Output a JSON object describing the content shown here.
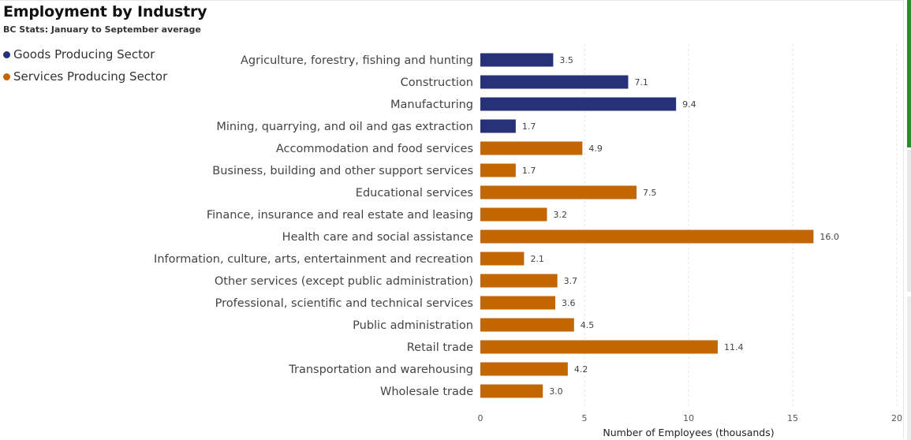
{
  "header": {
    "title": "Employment by Industry",
    "subtitle": "BC Stats: January to September average"
  },
  "legend": [
    {
      "label": "Goods Producing Sector",
      "color": "#27317a"
    },
    {
      "label": "Services Producing Sector",
      "color": "#c46600"
    }
  ],
  "chart_data": {
    "type": "bar",
    "orientation": "horizontal",
    "xlabel": "Number of Employees (thousands)",
    "xlim": [
      0,
      20
    ],
    "xticks": [
      0,
      5,
      10,
      15,
      20
    ],
    "grid": "vertical dashed",
    "legend_position": "top-left",
    "categories": [
      "Agriculture, forestry, fishing and hunting",
      "Construction",
      "Manufacturing",
      "Mining, quarrying, and oil and gas extraction",
      "Accommodation and food services",
      "Business, building and other support services",
      "Educational services",
      "Finance, insurance and real estate and leasing",
      "Health care and social assistance",
      "Information, culture, arts, entertainment and recreation",
      "Other services (except public administration)",
      "Professional, scientific and technical services",
      "Public administration",
      "Retail trade",
      "Transportation and warehousing",
      "Wholesale trade"
    ],
    "values": [
      3.5,
      7.1,
      9.4,
      1.7,
      4.9,
      1.7,
      7.5,
      3.2,
      16.0,
      2.1,
      3.7,
      3.6,
      4.5,
      11.4,
      4.2,
      3.0
    ],
    "value_labels": [
      "3.5",
      "7.1",
      "9.4",
      "1.7",
      "4.9",
      "1.7",
      "7.5",
      "3.2",
      "16.0",
      "2.1",
      "3.7",
      "3.6",
      "4.5",
      "11.4",
      "4.2",
      "3.0"
    ],
    "sector": [
      "Goods Producing Sector",
      "Goods Producing Sector",
      "Goods Producing Sector",
      "Goods Producing Sector",
      "Services Producing Sector",
      "Services Producing Sector",
      "Services Producing Sector",
      "Services Producing Sector",
      "Services Producing Sector",
      "Services Producing Sector",
      "Services Producing Sector",
      "Services Producing Sector",
      "Services Producing Sector",
      "Services Producing Sector",
      "Services Producing Sector",
      "Services Producing Sector"
    ]
  }
}
